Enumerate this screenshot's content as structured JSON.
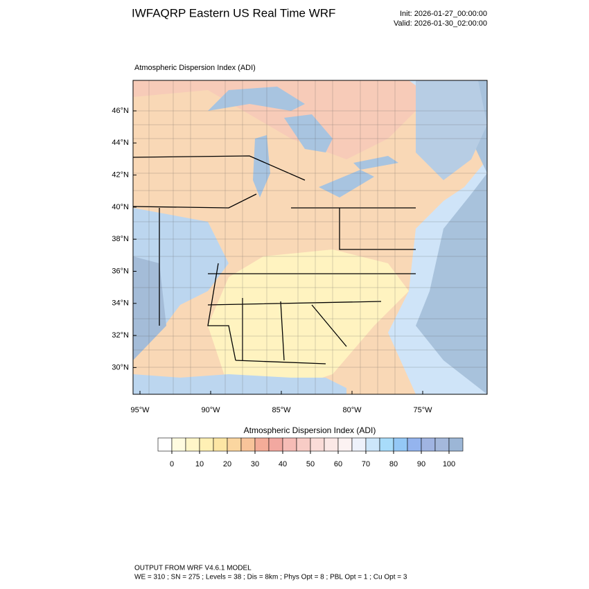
{
  "header": {
    "title": "IWFAQRP Eastern US Real Time WRF",
    "init": "Init: 2026-01-27_00:00:00",
    "valid": "Valid: 2026-01-30_02:00:00"
  },
  "map": {
    "subtitle": "Atmospheric Dispersion Index   (ADI)",
    "lat_labels": [
      {
        "value": 46,
        "label": "46°N"
      },
      {
        "value": 44,
        "label": "44°N"
      },
      {
        "value": 42,
        "label": "42°N"
      },
      {
        "value": 40,
        "label": "40°N"
      },
      {
        "value": 38,
        "label": "38°N"
      },
      {
        "value": 36,
        "label": "36°N"
      },
      {
        "value": 34,
        "label": "34°N"
      },
      {
        "value": 32,
        "label": "32°N"
      },
      {
        "value": 30,
        "label": "30°N"
      }
    ],
    "lon_labels": [
      {
        "value": -95,
        "label": "95°W"
      },
      {
        "value": -90,
        "label": "90°W"
      },
      {
        "value": -85,
        "label": "85°W"
      },
      {
        "value": -80,
        "label": "80°W"
      },
      {
        "value": -75,
        "label": "75°W"
      }
    ]
  },
  "colorbar": {
    "title": "Atmospheric Dispersion Index  (ADI)",
    "ticks": [
      0,
      10,
      20,
      30,
      40,
      50,
      60,
      70,
      80,
      90,
      100
    ],
    "colors": [
      "#ffffff",
      "#fffbe0",
      "#fff6c8",
      "#fff0b4",
      "#fde6a4",
      "#fbd6a0",
      "#f8c49a",
      "#f4ac98",
      "#f2a8a0",
      "#f6bcb6",
      "#f8ccc6",
      "#fadcd8",
      "#fbe8e6",
      "#fcf2f2",
      "#eef2fb",
      "#cce6fa",
      "#a8dcfa",
      "#94c8f6",
      "#94b4ee",
      "#a0b4e2",
      "#a4b8dc",
      "#9cb6d6"
    ]
  },
  "footer": {
    "line1": "OUTPUT FROM WRF V4.6.1 MODEL",
    "line2": "WE = 310 ; SN = 275 ; Levels = 38 ; Dis = 8km ; Phys Opt = 8 ; PBL Opt = 1 ; Cu Opt = 3"
  }
}
